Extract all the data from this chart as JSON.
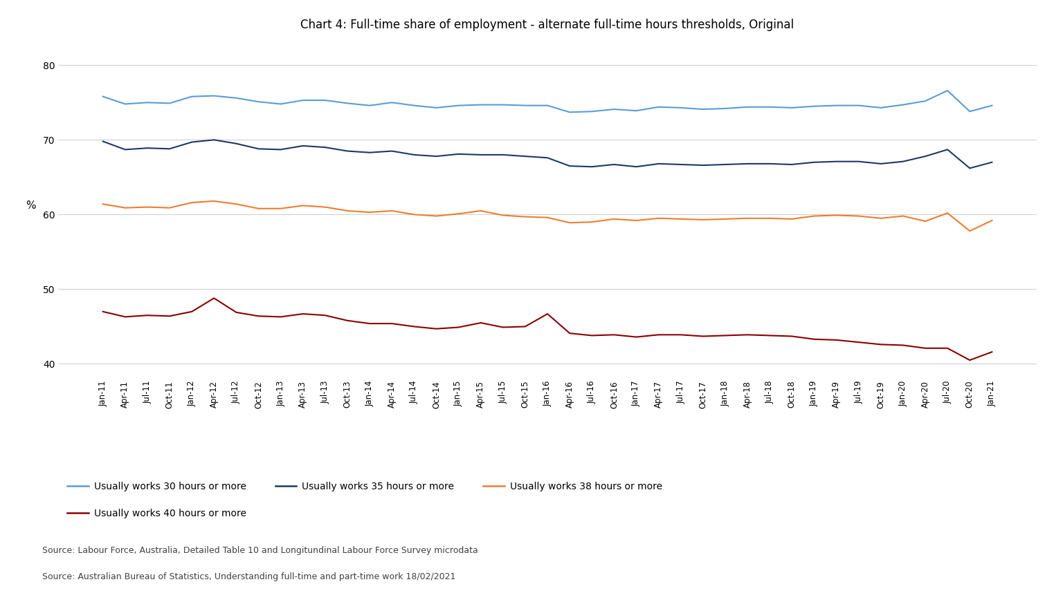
{
  "title": "Chart 4: Full-time share of employment - alternate full-time hours thresholds, Original",
  "ylabel": "%",
  "ylim": [
    38,
    83
  ],
  "yticks": [
    40,
    50,
    60,
    70,
    80
  ],
  "source1": "Source: Labour Force, Australia, Detailed Table 10 and Longitundinal Labour Force Survey microdata",
  "source2": "Source: Australian Bureau of Statistics, Understanding full-time and part-time work 18/02/2021",
  "legend": [
    "Usually works 30 hours or more",
    "Usually works 35 hours or more",
    "Usually works 38 hours or more",
    "Usually works 40 hours or more"
  ],
  "colors": [
    "#5B9BD5",
    "#1F3864",
    "#ED7D31",
    "#8B0000"
  ],
  "background": "#FFFFFF",
  "x_labels": [
    "Jan-11",
    "Apr-11",
    "Jul-11",
    "Oct-11",
    "Jan-12",
    "Apr-12",
    "Jul-12",
    "Oct-12",
    "Jan-13",
    "Apr-13",
    "Jul-13",
    "Oct-13",
    "Jan-14",
    "Apr-14",
    "Jul-14",
    "Oct-14",
    "Jan-15",
    "Apr-15",
    "Jul-15",
    "Oct-15",
    "Jan-16",
    "Apr-16",
    "Jul-16",
    "Oct-16",
    "Jan-17",
    "Apr-17",
    "Jul-17",
    "Oct-17",
    "Jan-18",
    "Apr-18",
    "Jul-18",
    "Oct-18",
    "Jan-19",
    "Apr-19",
    "Jul-19",
    "Oct-19",
    "Jan-20",
    "Apr-20",
    "Jul-20",
    "Oct-20",
    "Jan-21"
  ],
  "series_30": [
    75.8,
    74.8,
    75.0,
    74.9,
    75.8,
    75.9,
    75.6,
    75.1,
    74.8,
    75.3,
    75.3,
    74.9,
    74.6,
    75.0,
    74.6,
    74.3,
    74.6,
    74.7,
    74.7,
    74.6,
    74.6,
    73.7,
    73.8,
    74.1,
    73.9,
    74.4,
    74.3,
    74.1,
    74.2,
    74.4,
    74.4,
    74.3,
    74.5,
    74.6,
    74.6,
    74.3,
    74.7,
    75.2,
    76.6,
    73.8,
    74.6
  ],
  "series_35": [
    69.8,
    68.7,
    68.9,
    68.8,
    69.7,
    70.0,
    69.5,
    68.8,
    68.7,
    69.2,
    69.0,
    68.5,
    68.3,
    68.5,
    68.0,
    67.8,
    68.1,
    68.0,
    68.0,
    67.8,
    67.6,
    66.5,
    66.4,
    66.7,
    66.4,
    66.8,
    66.7,
    66.6,
    66.7,
    66.8,
    66.8,
    66.7,
    67.0,
    67.1,
    67.1,
    66.8,
    67.1,
    67.8,
    68.7,
    66.2,
    67.0
  ],
  "series_38": [
    61.4,
    60.9,
    61.0,
    60.9,
    61.6,
    61.8,
    61.4,
    60.8,
    60.8,
    61.2,
    61.0,
    60.5,
    60.3,
    60.5,
    60.0,
    59.8,
    60.1,
    60.5,
    59.9,
    59.7,
    59.6,
    58.9,
    59.0,
    59.4,
    59.2,
    59.5,
    59.4,
    59.3,
    59.4,
    59.5,
    59.5,
    59.4,
    59.8,
    59.9,
    59.8,
    59.5,
    59.8,
    59.1,
    60.2,
    57.8,
    59.2
  ],
  "series_40": [
    47.0,
    46.3,
    46.5,
    46.4,
    47.0,
    48.8,
    46.9,
    46.4,
    46.3,
    46.7,
    46.5,
    45.8,
    45.4,
    45.4,
    45.0,
    44.7,
    44.9,
    45.5,
    44.9,
    45.0,
    46.7,
    44.1,
    43.8,
    43.9,
    43.6,
    43.9,
    43.9,
    43.7,
    43.8,
    43.9,
    43.8,
    43.7,
    43.3,
    43.2,
    42.9,
    42.6,
    42.5,
    42.1,
    42.1,
    40.5,
    41.6
  ]
}
